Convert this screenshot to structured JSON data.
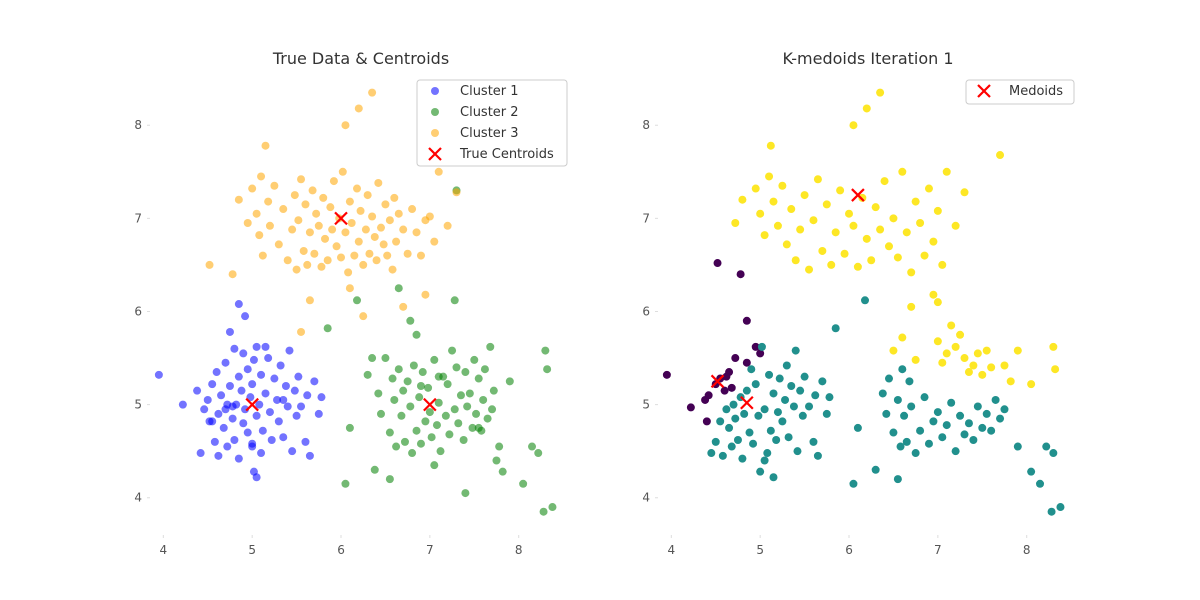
{
  "chart_data": [
    {
      "type": "scatter",
      "title": "True Data & Centroids",
      "xlabel": "",
      "ylabel": "",
      "xlim": [
        3.85,
        8.6
      ],
      "ylim": [
        3.6,
        8.55
      ],
      "xticks": [
        4,
        5,
        6,
        7,
        8
      ],
      "yticks": [
        4,
        5,
        6,
        7,
        8
      ],
      "grid": false,
      "legend_position": "top-right",
      "colors": {
        "cluster1": "#0000ff",
        "cluster2": "#008000",
        "cluster3": "#ffa500",
        "marker": "#ff0000"
      },
      "series": [
        {
          "name": "Cluster 1",
          "marker": "dot",
          "color": "#0000ff",
          "x": [
            3.95,
            4.22,
            4.38,
            4.42,
            4.46,
            4.5,
            4.52,
            4.55,
            4.58,
            4.6,
            4.62,
            4.62,
            4.65,
            4.68,
            4.7,
            4.72,
            4.72,
            4.75,
            4.78,
            4.8,
            4.8,
            4.82,
            4.85,
            4.85,
            4.88,
            4.9,
            4.9,
            4.92,
            4.95,
            4.95,
            4.98,
            5.0,
            5.0,
            5.02,
            5.05,
            5.05,
            5.08,
            5.1,
            5.1,
            5.12,
            5.15,
            5.18,
            5.2,
            5.22,
            5.25,
            5.28,
            5.3,
            5.32,
            5.35,
            5.38,
            5.4,
            5.42,
            5.45,
            5.48,
            5.5,
            5.52,
            5.55,
            5.6,
            5.62,
            5.65,
            5.7,
            5.75,
            5.78,
            4.55,
            4.75,
            4.85,
            5.02,
            5.05,
            4.7,
            4.92,
            5.15,
            5.35,
            5.0,
            4.78
          ],
          "y": [
            5.32,
            5.0,
            5.15,
            4.48,
            4.95,
            5.05,
            4.82,
            5.22,
            4.6,
            5.35,
            4.9,
            4.45,
            5.1,
            4.75,
            5.45,
            4.55,
            5.0,
            5.2,
            4.85,
            5.6,
            4.62,
            5.0,
            5.3,
            4.42,
            5.15,
            4.8,
            5.55,
            4.95,
            5.38,
            4.7,
            5.08,
            4.58,
            5.22,
            4.28,
            5.62,
            4.88,
            5.0,
            4.48,
            5.32,
            4.72,
            5.12,
            5.5,
            4.92,
            4.62,
            5.28,
            5.05,
            4.82,
            5.42,
            4.65,
            5.2,
            4.98,
            5.58,
            4.5,
            5.15,
            4.88,
            5.3,
            4.98,
            4.6,
            5.1,
            4.45,
            5.25,
            4.9,
            5.08,
            4.82,
            5.78,
            6.08,
            5.48,
            4.22,
            4.95,
            5.95,
            5.62,
            5.05,
            4.55,
            4.98
          ]
        },
        {
          "name": "Cluster 2",
          "marker": "dot",
          "color": "#008000",
          "x": [
            5.85,
            6.1,
            6.3,
            6.38,
            6.42,
            6.45,
            6.5,
            6.55,
            6.58,
            6.6,
            6.62,
            6.65,
            6.68,
            6.7,
            6.72,
            6.75,
            6.78,
            6.8,
            6.82,
            6.85,
            6.88,
            6.9,
            6.92,
            6.95,
            6.98,
            7.0,
            7.02,
            7.05,
            7.08,
            7.1,
            7.12,
            7.15,
            7.18,
            7.2,
            7.22,
            7.25,
            7.28,
            7.3,
            7.32,
            7.35,
            7.38,
            7.4,
            7.42,
            7.45,
            7.48,
            7.5,
            7.52,
            7.55,
            7.58,
            7.6,
            7.62,
            7.65,
            7.68,
            7.7,
            7.72,
            7.75,
            7.78,
            7.82,
            7.9,
            8.05,
            8.15,
            8.22,
            8.28,
            8.3,
            8.32,
            8.38,
            6.18,
            6.35,
            6.55,
            6.65,
            6.85,
            7.1,
            7.28,
            7.4,
            6.78,
            7.55,
            7.05,
            6.9,
            6.05,
            7.3
          ],
          "y": [
            5.82,
            4.75,
            5.32,
            4.3,
            5.12,
            4.9,
            5.5,
            4.7,
            5.28,
            5.05,
            4.55,
            5.38,
            4.88,
            5.15,
            4.6,
            5.25,
            4.98,
            4.48,
            5.42,
            4.72,
            5.08,
            4.58,
            5.35,
            4.82,
            5.18,
            4.92,
            4.65,
            5.48,
            4.78,
            5.02,
            4.5,
            5.3,
            4.88,
            5.22,
            4.68,
            5.58,
            4.95,
            5.4,
            4.8,
            5.1,
            4.62,
            5.35,
            4.98,
            5.12,
            4.75,
            5.48,
            4.9,
            5.28,
            4.72,
            5.05,
            5.38,
            4.85,
            5.62,
            4.95,
            5.15,
            4.4,
            4.55,
            4.28,
            5.25,
            4.15,
            4.55,
            4.48,
            3.85,
            5.58,
            5.38,
            3.9,
            6.12,
            5.5,
            4.2,
            6.25,
            5.75,
            5.3,
            6.12,
            4.05,
            5.9,
            4.75,
            4.35,
            5.2,
            4.15,
            7.3
          ]
        },
        {
          "name": "Cluster 3",
          "marker": "dot",
          "color": "#ffa500",
          "x": [
            4.52,
            4.78,
            4.85,
            4.95,
            5.0,
            5.05,
            5.08,
            5.1,
            5.12,
            5.15,
            5.18,
            5.2,
            5.25,
            5.3,
            5.35,
            5.4,
            5.45,
            5.48,
            5.5,
            5.52,
            5.55,
            5.58,
            5.6,
            5.62,
            5.65,
            5.68,
            5.7,
            5.72,
            5.75,
            5.78,
            5.8,
            5.82,
            5.85,
            5.88,
            5.9,
            5.92,
            5.95,
            5.98,
            6.0,
            6.02,
            6.05,
            6.08,
            6.1,
            6.12,
            6.15,
            6.18,
            6.2,
            6.22,
            6.25,
            6.28,
            6.3,
            6.32,
            6.35,
            6.38,
            6.4,
            6.42,
            6.45,
            6.48,
            6.5,
            6.52,
            6.55,
            6.58,
            6.6,
            6.62,
            6.65,
            6.7,
            6.75,
            6.8,
            6.85,
            6.9,
            6.95,
            7.0,
            7.05,
            7.1,
            7.2,
            7.3,
            6.2,
            6.35,
            6.05,
            5.65,
            6.7,
            6.95,
            5.55,
            6.1,
            6.25
          ],
          "y": [
            6.5,
            6.4,
            7.2,
            6.95,
            7.32,
            7.05,
            6.82,
            7.45,
            6.6,
            7.78,
            7.18,
            6.92,
            7.35,
            6.72,
            7.1,
            6.55,
            6.88,
            7.25,
            6.45,
            6.98,
            7.42,
            6.65,
            7.15,
            6.5,
            6.85,
            7.3,
            6.62,
            7.05,
            6.92,
            6.48,
            7.22,
            6.78,
            6.55,
            7.12,
            6.88,
            7.4,
            6.7,
            7.0,
            6.58,
            7.5,
            6.85,
            6.42,
            7.18,
            6.95,
            6.6,
            7.32,
            6.75,
            7.08,
            6.5,
            6.88,
            7.25,
            6.62,
            7.02,
            6.8,
            6.55,
            7.38,
            6.9,
            6.72,
            7.15,
            6.6,
            6.98,
            6.45,
            7.22,
            6.75,
            7.05,
            6.88,
            6.62,
            7.1,
            6.85,
            6.6,
            6.98,
            7.02,
            6.75,
            7.5,
            6.92,
            7.28,
            8.18,
            8.35,
            8.0,
            6.12,
            6.05,
            6.18,
            5.78,
            6.25,
            5.95
          ]
        },
        {
          "name": "True Centroids",
          "marker": "x",
          "color": "#ff0000",
          "x": [
            5.0,
            7.0,
            6.0
          ],
          "y": [
            5.0,
            5.0,
            7.0
          ]
        }
      ]
    },
    {
      "type": "scatter",
      "title": "K-medoids Iteration 1",
      "xlabel": "",
      "ylabel": "",
      "xlim": [
        3.85,
        8.6
      ],
      "ylim": [
        3.6,
        8.55
      ],
      "xticks": [
        4,
        5,
        6,
        7,
        8
      ],
      "yticks": [
        4,
        5,
        6,
        7,
        8
      ],
      "grid": false,
      "legend_position": "top-right",
      "colors": {
        "purple": "#440154",
        "teal": "#21908d",
        "yellow": "#fde725",
        "marker": "#ff0000"
      },
      "series": [
        {
          "marker": "dot",
          "color": "#440154",
          "x": [
            3.95,
            4.22,
            4.38,
            4.42,
            4.5,
            4.55,
            4.6,
            4.65,
            4.72,
            4.85,
            4.95,
            5.0,
            4.52,
            4.78,
            4.4,
            4.62,
            4.68,
            4.85
          ],
          "y": [
            5.32,
            4.97,
            5.05,
            5.1,
            5.22,
            5.28,
            5.15,
            5.35,
            5.5,
            5.45,
            5.62,
            5.55,
            6.52,
            6.4,
            4.82,
            5.3,
            5.18,
            5.9
          ],
          "labels": []
        },
        {
          "marker": "dot",
          "color": "#21908d",
          "x": [
            4.45,
            4.5,
            4.55,
            4.58,
            4.62,
            4.65,
            4.68,
            4.7,
            4.72,
            4.75,
            4.78,
            4.8,
            4.82,
            4.85,
            4.88,
            4.9,
            4.92,
            4.95,
            4.98,
            5.0,
            5.02,
            5.05,
            5.08,
            5.1,
            5.12,
            5.15,
            5.18,
            5.2,
            5.22,
            5.25,
            5.28,
            5.3,
            5.32,
            5.35,
            5.38,
            5.4,
            5.42,
            5.45,
            5.48,
            5.5,
            5.55,
            5.6,
            5.62,
            5.65,
            5.7,
            5.75,
            5.78,
            5.85,
            6.1,
            6.3,
            6.38,
            6.42,
            6.45,
            6.5,
            6.55,
            6.58,
            6.6,
            6.62,
            6.65,
            6.68,
            6.7,
            6.75,
            6.8,
            6.85,
            6.9,
            6.95,
            7.0,
            7.05,
            7.1,
            7.15,
            7.2,
            7.25,
            7.3,
            7.35,
            7.4,
            7.45,
            7.5,
            7.55,
            7.6,
            7.65,
            7.7,
            7.75,
            7.9,
            8.05,
            8.15,
            8.22,
            8.28,
            8.3,
            8.38,
            6.18,
            6.55,
            6.05,
            5.15,
            5.05
          ],
          "y": [
            4.48,
            4.6,
            4.82,
            4.45,
            4.95,
            4.75,
            4.55,
            5.0,
            4.85,
            4.62,
            5.08,
            4.42,
            4.9,
            5.15,
            4.7,
            5.38,
            4.58,
            5.22,
            4.88,
            4.28,
            5.62,
            4.95,
            4.48,
            5.32,
            4.72,
            5.12,
            4.62,
            4.92,
            5.28,
            4.82,
            5.05,
            5.42,
            4.65,
            5.2,
            4.98,
            5.58,
            4.5,
            5.15,
            4.88,
            5.3,
            4.98,
            4.6,
            5.1,
            4.45,
            5.25,
            4.9,
            5.08,
            5.82,
            4.75,
            4.3,
            5.12,
            4.9,
            5.28,
            4.7,
            5.05,
            4.55,
            5.38,
            4.88,
            4.6,
            5.25,
            4.98,
            4.48,
            4.72,
            5.08,
            4.58,
            4.82,
            4.92,
            4.65,
            4.78,
            5.02,
            4.5,
            4.88,
            4.68,
            4.8,
            4.62,
            4.98,
            4.75,
            4.9,
            4.72,
            5.05,
            4.85,
            4.95,
            4.55,
            4.28,
            4.15,
            4.55,
            3.85,
            4.48,
            3.9,
            6.12,
            4.2,
            4.15,
            4.22,
            4.4
          ],
          "labels": []
        },
        {
          "marker": "dot",
          "color": "#fde725",
          "x": [
            4.72,
            4.8,
            4.95,
            5.0,
            5.05,
            5.1,
            5.12,
            5.15,
            5.2,
            5.25,
            5.3,
            5.35,
            5.4,
            5.45,
            5.5,
            5.55,
            5.6,
            5.65,
            5.7,
            5.75,
            5.8,
            5.85,
            5.9,
            5.95,
            6.0,
            6.05,
            6.1,
            6.15,
            6.2,
            6.25,
            6.3,
            6.35,
            6.4,
            6.45,
            6.5,
            6.55,
            6.6,
            6.65,
            6.7,
            6.75,
            6.8,
            6.85,
            6.9,
            6.95,
            7.0,
            7.05,
            7.1,
            7.2,
            7.3,
            6.2,
            6.35,
            6.05,
            6.7,
            6.95,
            7.0,
            7.05,
            7.1,
            7.15,
            7.2,
            7.25,
            7.3,
            7.35,
            7.4,
            7.45,
            7.5,
            7.55,
            7.6,
            7.7,
            7.75,
            7.82,
            7.9,
            8.05,
            8.3,
            8.32,
            6.5,
            6.6,
            6.75,
            7.0
          ],
          "y": [
            6.95,
            7.2,
            7.32,
            7.05,
            6.82,
            7.45,
            7.78,
            7.18,
            6.92,
            7.35,
            6.72,
            7.1,
            6.55,
            6.88,
            7.25,
            6.45,
            6.98,
            7.42,
            6.65,
            7.15,
            6.5,
            6.85,
            7.3,
            6.62,
            7.05,
            6.92,
            6.48,
            7.22,
            6.78,
            6.55,
            7.12,
            6.88,
            7.4,
            6.7,
            7.0,
            6.58,
            7.5,
            6.85,
            6.42,
            7.18,
            6.95,
            6.6,
            7.32,
            6.75,
            7.08,
            6.5,
            7.5,
            6.92,
            7.28,
            8.18,
            8.35,
            8.0,
            6.05,
            6.18,
            5.68,
            5.45,
            5.55,
            5.85,
            5.62,
            5.75,
            5.5,
            5.35,
            5.42,
            5.55,
            5.32,
            5.58,
            5.4,
            7.68,
            5.42,
            5.25,
            5.58,
            5.22,
            5.62,
            5.38,
            5.58,
            5.72,
            5.48,
            6.1
          ],
          "labels": []
        },
        {
          "name": "Medoids",
          "marker": "x",
          "color": "#ff0000",
          "x": [
            4.52,
            4.85,
            6.1
          ],
          "y": [
            5.25,
            5.02,
            7.25
          ]
        }
      ]
    }
  ],
  "panel1": {
    "title": "True Data & Centroids",
    "legend": [
      {
        "label": "Cluster 1",
        "color": "#0000ff",
        "marker": "dot"
      },
      {
        "label": "Cluster 2",
        "color": "#008000",
        "marker": "dot"
      },
      {
        "label": "Cluster 3",
        "color": "#ffa500",
        "marker": "dot"
      },
      {
        "label": "True Centroids",
        "color": "#ff0000",
        "marker": "x"
      }
    ]
  },
  "panel2": {
    "title": "K-medoids Iteration 1",
    "legend": [
      {
        "label": "Medoids",
        "color": "#ff0000",
        "marker": "x"
      }
    ]
  }
}
